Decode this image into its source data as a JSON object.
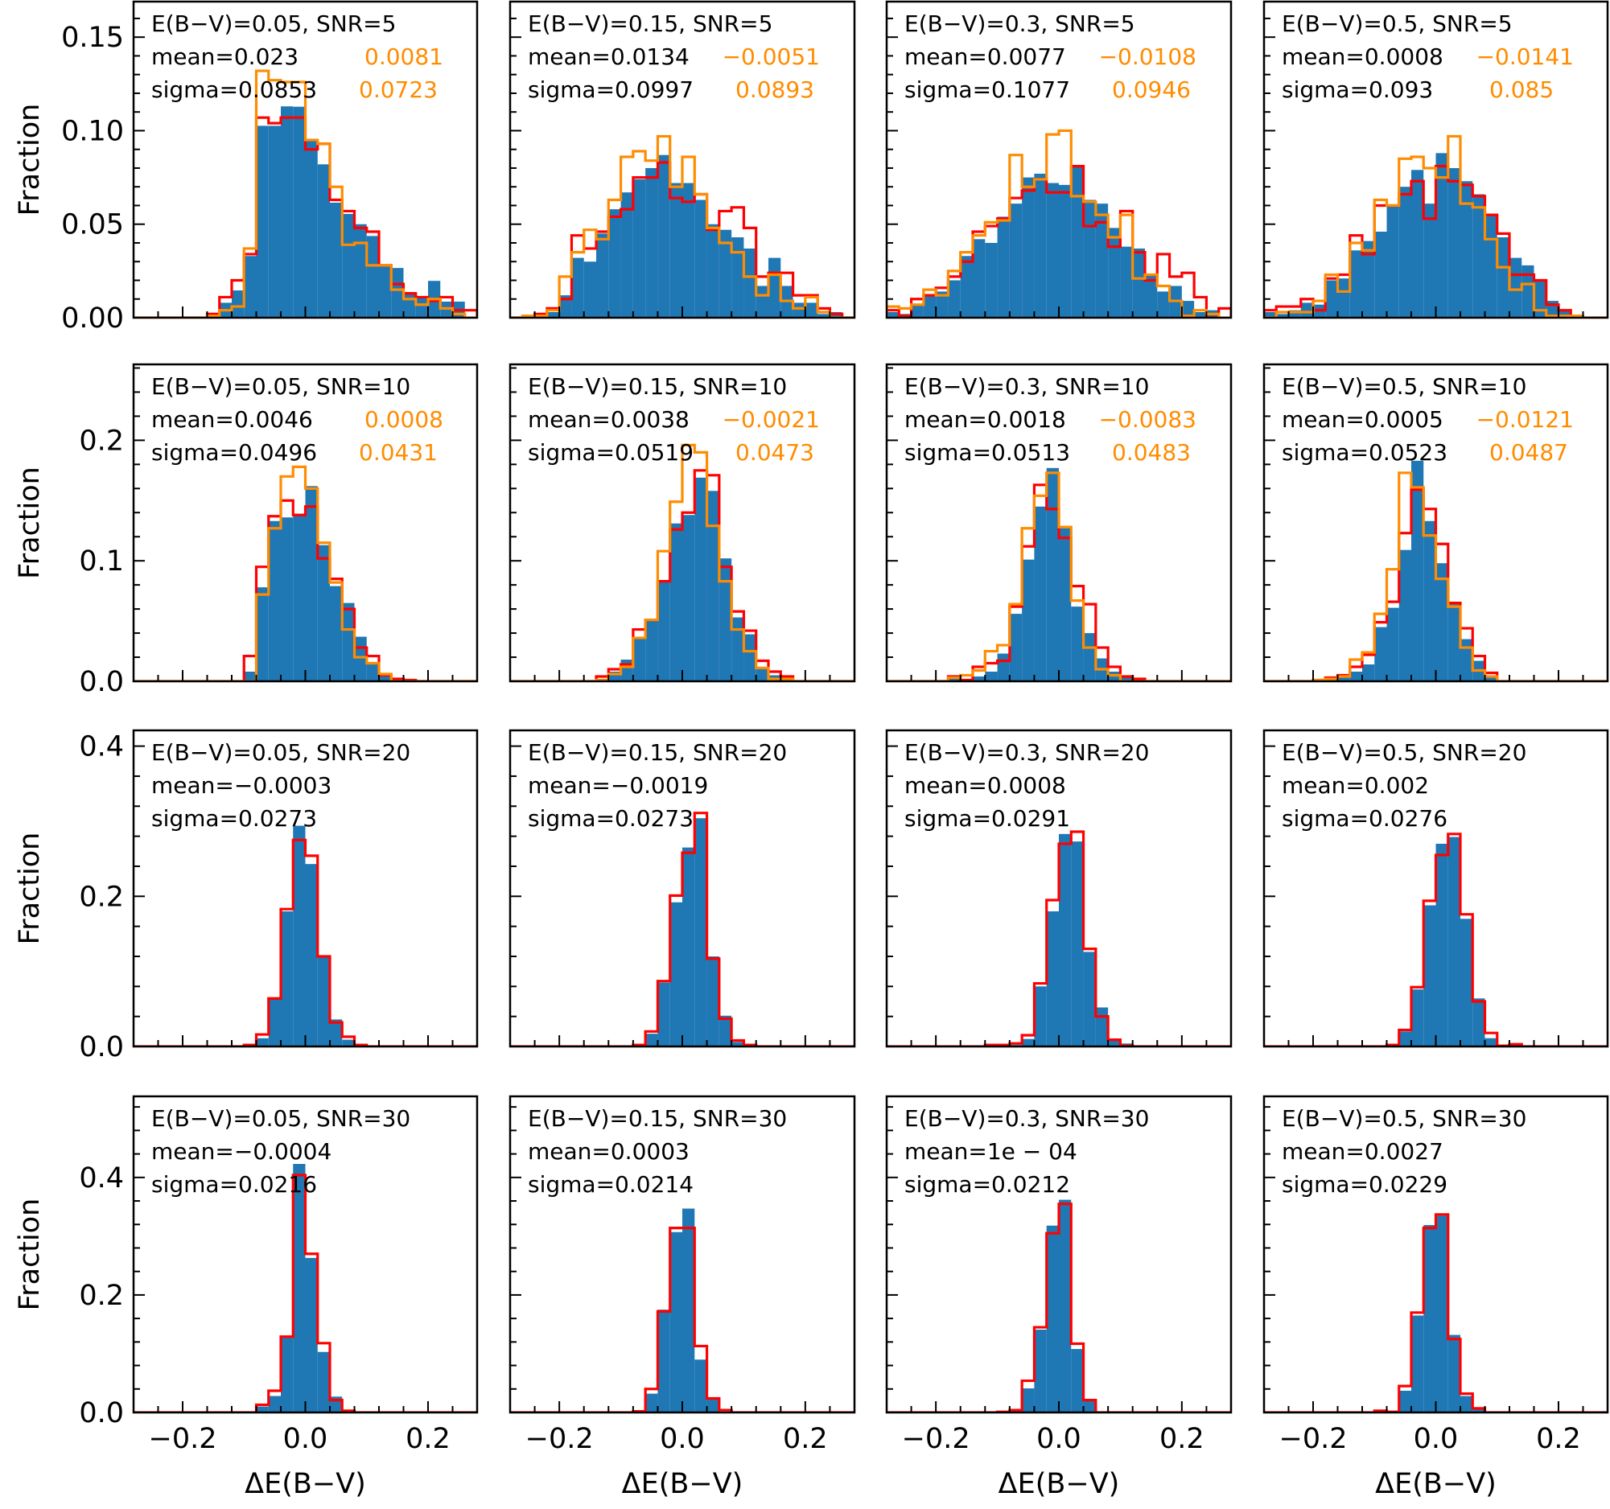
{
  "colors": {
    "fill": "#1f77b4",
    "red_step": "#ff0000",
    "orange_step": "#ff8c00",
    "axes": "#000000"
  },
  "chart_data": {
    "type": "bar",
    "layout": "4x4 grid of histograms",
    "xlabel": "ΔE(B−V)",
    "ylabel": "Fraction",
    "xlim": [
      -0.28,
      0.28
    ],
    "x_ticks": [
      -0.2,
      0.0,
      0.2
    ],
    "x_tick_labels": [
      "−0.2",
      "0.0",
      "0.2"
    ],
    "bin_width": 0.02,
    "series_names": [
      "filled (blue)",
      "step (red)",
      "step (orange)"
    ],
    "rows": [
      {
        "snr": 5,
        "ylim": [
          0,
          0.169
        ],
        "y_ticks": [
          0,
          0.05,
          0.1,
          0.15
        ],
        "y_tick_labels": [
          "0.00",
          "0.05",
          "0.10",
          "0.15"
        ]
      },
      {
        "snr": 10,
        "ylim": [
          0,
          0.263
        ],
        "y_ticks": [
          0,
          0.1,
          0.2
        ],
        "y_tick_labels": [
          "0.0",
          "0.1",
          "0.2"
        ]
      },
      {
        "snr": 20,
        "ylim": [
          0,
          0.421
        ],
        "y_ticks": [
          0,
          0.2,
          0.4
        ],
        "y_tick_labels": [
          "0.0",
          "0.2",
          "0.4"
        ]
      },
      {
        "snr": 30,
        "ylim": [
          0,
          0.538
        ],
        "y_ticks": [
          0,
          0.2,
          0.4
        ],
        "y_tick_labels": [
          "0.0",
          "0.2",
          "0.4"
        ]
      }
    ],
    "panels": [
      {
        "row": 0,
        "col": 0,
        "title": "E(B−V)=0.05,  SNR=5",
        "mean": "mean=0.023",
        "sigma": "sigma=0.0853",
        "mean_alt": "0.0081",
        "sigma_alt": "0.0723",
        "start": -0.16,
        "blue": [
          0.0,
          0.008,
          0.0146,
          0.033,
          0.1026,
          0.1026,
          0.113,
          0.1128,
          0.0948,
          0.082,
          0.0615,
          0.0555,
          0.05,
          0.0437,
          0.028,
          0.0266,
          0.0137,
          0.0107,
          0.0197,
          0.0086,
          0.0086,
          0.0
        ],
        "red": [
          0.002,
          0.011,
          0.02,
          0.034,
          0.107,
          0.104,
          0.107,
          0.107,
          0.09,
          0.093,
          0.063,
          0.057,
          0.048,
          0.046,
          0.028,
          0.018,
          0.013,
          0.011,
          0.009,
          0.011,
          0.004,
          0.004
        ],
        "orange": [
          0.001,
          0.004,
          0.006,
          0.037,
          0.132,
          0.127,
          0.126,
          0.126,
          0.095,
          0.093,
          0.07,
          0.039,
          0.04,
          0.028,
          0.028,
          0.015,
          0.01,
          0.007,
          0.01,
          0.005,
          0.002,
          0.0
        ]
      },
      {
        "row": 0,
        "col": 1,
        "title": "E(B−V)=0.15,  SNR=5",
        "mean": "mean=0.0134",
        "sigma": "sigma=0.0997",
        "mean_alt": "−0.0051",
        "sigma_alt": "0.0893",
        "start": -0.28,
        "blue": [
          0.0,
          0.0,
          0.001,
          0.003,
          0.012,
          0.032,
          0.03,
          0.045,
          0.058,
          0.067,
          0.074,
          0.08,
          0.087,
          0.072,
          0.072,
          0.063,
          0.05,
          0.047,
          0.043,
          0.037,
          0.017,
          0.032,
          0.017,
          0.008,
          0.008,
          0.002,
          0.003,
          0.0
        ],
        "red": [
          0.0,
          0.0,
          0.002,
          0.005,
          0.01,
          0.044,
          0.037,
          0.046,
          0.054,
          0.058,
          0.075,
          0.075,
          0.083,
          0.064,
          0.062,
          0.066,
          0.047,
          0.057,
          0.059,
          0.048,
          0.022,
          0.024,
          0.024,
          0.012,
          0.012,
          0.005,
          0.002,
          0.0
        ],
        "orange": [
          0.0,
          0.001,
          0.001,
          0.004,
          0.022,
          0.035,
          0.047,
          0.042,
          0.063,
          0.086,
          0.089,
          0.084,
          0.097,
          0.07,
          0.086,
          0.066,
          0.048,
          0.04,
          0.035,
          0.022,
          0.012,
          0.023,
          0.009,
          0.005,
          0.011,
          0.003,
          0.0,
          0.0
        ]
      },
      {
        "row": 0,
        "col": 2,
        "title": "E(B−V)=0.3,  SNR=5",
        "mean": "mean=0.0077",
        "sigma": "sigma=0.1077",
        "mean_alt": "−0.0108",
        "sigma_alt": "0.0946",
        "start": -0.28,
        "blue": [
          0.003,
          0.002,
          0.007,
          0.012,
          0.014,
          0.02,
          0.033,
          0.042,
          0.04,
          0.054,
          0.061,
          0.075,
          0.077,
          0.072,
          0.071,
          0.081,
          0.063,
          0.061,
          0.048,
          0.038,
          0.037,
          0.023,
          0.014,
          0.017,
          0.009,
          0.003,
          0.004,
          0.0
        ],
        "red": [
          0.004,
          0.001,
          0.01,
          0.012,
          0.016,
          0.022,
          0.03,
          0.046,
          0.049,
          0.053,
          0.064,
          0.068,
          0.074,
          0.067,
          0.067,
          0.081,
          0.049,
          0.051,
          0.038,
          0.057,
          0.035,
          0.02,
          0.034,
          0.022,
          0.024,
          0.011,
          0.0,
          0.005
        ],
        "orange": [
          0.006,
          0.005,
          0.007,
          0.015,
          0.012,
          0.025,
          0.035,
          0.044,
          0.051,
          0.052,
          0.087,
          0.07,
          0.074,
          0.098,
          0.1,
          0.065,
          0.062,
          0.055,
          0.043,
          0.055,
          0.021,
          0.023,
          0.017,
          0.009,
          0.001,
          0.004,
          0.002,
          0.0
        ]
      },
      {
        "row": 0,
        "col": 3,
        "title": "E(B−V)=0.5,  SNR=5",
        "mean": "mean=0.0008",
        "sigma": "sigma=0.093",
        "mean_alt": "−0.0141",
        "sigma_alt": "0.085",
        "start": -0.28,
        "blue": [
          0.003,
          0.002,
          0.004,
          0.008,
          0.007,
          0.02,
          0.021,
          0.036,
          0.041,
          0.046,
          0.06,
          0.07,
          0.079,
          0.061,
          0.088,
          0.08,
          0.073,
          0.066,
          0.055,
          0.043,
          0.032,
          0.028,
          0.02,
          0.009,
          0.004,
          0.0,
          0.0,
          0.0
        ],
        "red": [
          0.004,
          0.006,
          0.006,
          0.01,
          0.004,
          0.021,
          0.023,
          0.044,
          0.034,
          0.06,
          0.06,
          0.066,
          0.073,
          0.053,
          0.081,
          0.073,
          0.071,
          0.065,
          0.055,
          0.045,
          0.023,
          0.023,
          0.02,
          0.007,
          0.004,
          0.0,
          0.0,
          0.0
        ],
        "orange": [
          0.0,
          0.003,
          0.003,
          0.003,
          0.009,
          0.023,
          0.014,
          0.04,
          0.036,
          0.063,
          0.06,
          0.085,
          0.086,
          0.08,
          0.075,
          0.097,
          0.061,
          0.059,
          0.042,
          0.027,
          0.015,
          0.018,
          0.004,
          0.001,
          0.001,
          0.001,
          0.0,
          0.0
        ]
      },
      {
        "row": 1,
        "col": 0,
        "title": "E(B−V)=0.05,  SNR=10",
        "mean": "mean=0.0046",
        "sigma": "sigma=0.0496",
        "mean_alt": "0.0008",
        "sigma_alt": "0.0431",
        "start": -0.1,
        "blue": [
          0.008,
          0.078,
          0.133,
          0.136,
          0.139,
          0.162,
          0.113,
          0.079,
          0.065,
          0.037,
          0.016,
          0.007,
          0.002,
          0.0
        ],
        "red": [
          0.021,
          0.095,
          0.137,
          0.15,
          0.138,
          0.145,
          0.102,
          0.085,
          0.06,
          0.028,
          0.021,
          0.005,
          0.002,
          0.001
        ],
        "orange": [
          0.0,
          0.072,
          0.127,
          0.17,
          0.178,
          0.16,
          0.115,
          0.082,
          0.043,
          0.02,
          0.015,
          0.006,
          0.0,
          0.0
        ]
      },
      {
        "row": 1,
        "col": 1,
        "title": "E(B−V)=0.15,  SNR=10",
        "mean": "mean=0.0038",
        "sigma": "sigma=0.0519",
        "mean_alt": "−0.0021",
        "sigma_alt": "0.0473",
        "start": -0.16,
        "blue": [
          0.0,
          0.002,
          0.008,
          0.018,
          0.036,
          0.051,
          0.083,
          0.131,
          0.138,
          0.169,
          0.158,
          0.102,
          0.053,
          0.039,
          0.012,
          0.005,
          0.001,
          0.0
        ],
        "red": [
          0.0,
          0.004,
          0.01,
          0.014,
          0.043,
          0.051,
          0.083,
          0.126,
          0.14,
          0.175,
          0.171,
          0.095,
          0.058,
          0.042,
          0.017,
          0.008,
          0.004,
          0.0
        ],
        "orange": [
          0.0,
          0.001,
          0.006,
          0.012,
          0.036,
          0.051,
          0.108,
          0.149,
          0.196,
          0.19,
          0.129,
          0.083,
          0.043,
          0.025,
          0.011,
          0.002,
          0.002,
          0.0
        ]
      },
      {
        "row": 1,
        "col": 2,
        "title": "E(B−V)=0.3,  SNR=10",
        "mean": "mean=0.0018",
        "sigma": "sigma=0.0513",
        "mean_alt": "−0.0083",
        "sigma_alt": "0.0483",
        "start": -0.18,
        "blue": [
          0.002,
          0.002,
          0.004,
          0.008,
          0.023,
          0.056,
          0.101,
          0.145,
          0.177,
          0.127,
          0.062,
          0.04,
          0.019,
          0.008,
          0.004,
          0.001,
          0.0
        ],
        "red": [
          0.004,
          0.001,
          0.012,
          0.015,
          0.017,
          0.062,
          0.112,
          0.163,
          0.143,
          0.119,
          0.079,
          0.064,
          0.028,
          0.012,
          0.004,
          0.002,
          0.0
        ],
        "orange": [
          0.003,
          0.005,
          0.009,
          0.025,
          0.03,
          0.064,
          0.127,
          0.154,
          0.173,
          0.128,
          0.067,
          0.028,
          0.01,
          0.005,
          0.0,
          0.0,
          0.0
        ]
      },
      {
        "row": 1,
        "col": 3,
        "title": "E(B−V)=0.5,  SNR=10",
        "mean": "mean=0.0005",
        "sigma": "sigma=0.0523",
        "mean_alt": "−0.0121",
        "sigma_alt": "0.0487",
        "start": -0.22,
        "blue": [
          0.0,
          0.001,
          0.002,
          0.004,
          0.008,
          0.014,
          0.045,
          0.061,
          0.109,
          0.183,
          0.133,
          0.098,
          0.064,
          0.035,
          0.017,
          0.005,
          0.001,
          0.0
        ],
        "red": [
          0.0,
          0.001,
          0.003,
          0.005,
          0.012,
          0.022,
          0.049,
          0.066,
          0.123,
          0.159,
          0.143,
          0.114,
          0.065,
          0.044,
          0.021,
          0.007,
          0.0,
          0.0
        ],
        "orange": [
          0.0,
          0.001,
          0.002,
          0.004,
          0.018,
          0.024,
          0.056,
          0.093,
          0.173,
          0.161,
          0.121,
          0.085,
          0.062,
          0.028,
          0.009,
          0.004,
          0.0,
          0.0
        ]
      },
      {
        "row": 2,
        "col": 0,
        "title": "E(B−V)=0.05,  SNR=20",
        "mean": "mean=−0.0003",
        "sigma": "sigma=0.0273",
        "red_only": true,
        "start": -0.1,
        "blue": [
          0.0,
          0.011,
          0.063,
          0.18,
          0.294,
          0.243,
          0.12,
          0.036,
          0.009,
          0.001,
          0.0
        ],
        "red": [
          0.002,
          0.016,
          0.064,
          0.183,
          0.275,
          0.254,
          0.12,
          0.032,
          0.013,
          0.002,
          0.0
        ],
        "orange": []
      },
      {
        "row": 2,
        "col": 1,
        "title": "E(B−V)=0.15,  SNR=20",
        "mean": "mean=−0.0019",
        "sigma": "sigma=0.0273",
        "red_only": true,
        "start": -0.1,
        "blue": [
          0.001,
          0.003,
          0.017,
          0.085,
          0.192,
          0.265,
          0.304,
          0.12,
          0.041,
          0.006,
          0.001,
          0.0
        ],
        "red": [
          0.0,
          0.002,
          0.02,
          0.087,
          0.201,
          0.258,
          0.311,
          0.117,
          0.037,
          0.008,
          0.002,
          0.0
        ],
        "orange": []
      },
      {
        "row": 2,
        "col": 2,
        "title": "E(B−V)=0.3,  SNR=20",
        "mean": "mean=0.0008",
        "sigma": "sigma=0.0291",
        "red_only": true,
        "start": -0.12,
        "blue": [
          0.0,
          0.0,
          0.002,
          0.01,
          0.08,
          0.18,
          0.283,
          0.273,
          0.126,
          0.052,
          0.008,
          0.004,
          0.0
        ],
        "red": [
          0.002,
          0.002,
          0.004,
          0.015,
          0.084,
          0.195,
          0.27,
          0.286,
          0.13,
          0.04,
          0.009,
          0.001,
          0.0
        ],
        "orange": []
      },
      {
        "row": 2,
        "col": 3,
        "title": "E(B−V)=0.5,  SNR=20",
        "mean": "mean=0.002",
        "sigma": "sigma=0.0276",
        "red_only": true,
        "start": -0.1,
        "blue": [
          0.0,
          0.001,
          0.02,
          0.076,
          0.188,
          0.27,
          0.279,
          0.17,
          0.064,
          0.011,
          0.0,
          0.002
        ],
        "red": [
          0.0,
          0.002,
          0.022,
          0.079,
          0.194,
          0.255,
          0.283,
          0.176,
          0.06,
          0.018,
          0.001,
          0.003
        ],
        "orange": []
      },
      {
        "row": 3,
        "col": 0,
        "title": "E(B−V)=0.05,  SNR=30",
        "mean": "mean=−0.0004",
        "sigma": "sigma=0.0216",
        "red_only": true,
        "start": -0.1,
        "blue": [
          0.0,
          0.01,
          0.028,
          0.127,
          0.423,
          0.263,
          0.103,
          0.027,
          0.001,
          0.0
        ],
        "red": [
          0.0,
          0.013,
          0.037,
          0.129,
          0.404,
          0.27,
          0.118,
          0.021,
          0.003,
          0.0
        ],
        "orange": []
      },
      {
        "row": 3,
        "col": 1,
        "title": "E(B−V)=0.15,  SNR=30",
        "mean": "mean=0.0003",
        "sigma": "sigma=0.0214",
        "red_only": true,
        "start": -0.1,
        "blue": [
          0.0,
          0.001,
          0.032,
          0.175,
          0.307,
          0.347,
          0.09,
          0.023,
          0.001,
          0.0
        ],
        "red": [
          0.0,
          0.002,
          0.04,
          0.172,
          0.314,
          0.314,
          0.113,
          0.024,
          0.004,
          0.0
        ],
        "orange": []
      },
      {
        "row": 3,
        "col": 2,
        "title": "E(B−V)=0.3,  SNR=30",
        "mean": "mean=1e − 04",
        "sigma": "sigma=0.0212",
        "red_only": true,
        "start": -0.12,
        "blue": [
          0.0,
          0.001,
          0.002,
          0.041,
          0.141,
          0.318,
          0.362,
          0.108,
          0.02,
          0.001,
          0.0
        ],
        "red": [
          0.0,
          0.001,
          0.004,
          0.054,
          0.145,
          0.305,
          0.355,
          0.117,
          0.021,
          0.0,
          0.0
        ],
        "orange": []
      },
      {
        "row": 3,
        "col": 3,
        "title": "E(B−V)=0.5,  SNR=30",
        "mean": "mean=0.0027",
        "sigma": "sigma=0.0229",
        "red_only": true,
        "start": -0.12,
        "blue": [
          0.0,
          0.002,
          0.002,
          0.037,
          0.165,
          0.319,
          0.335,
          0.132,
          0.028,
          0.007,
          0.0
        ],
        "red": [
          0.0,
          0.003,
          0.001,
          0.045,
          0.17,
          0.314,
          0.337,
          0.125,
          0.032,
          0.007,
          0.0
        ],
        "orange": []
      }
    ]
  }
}
